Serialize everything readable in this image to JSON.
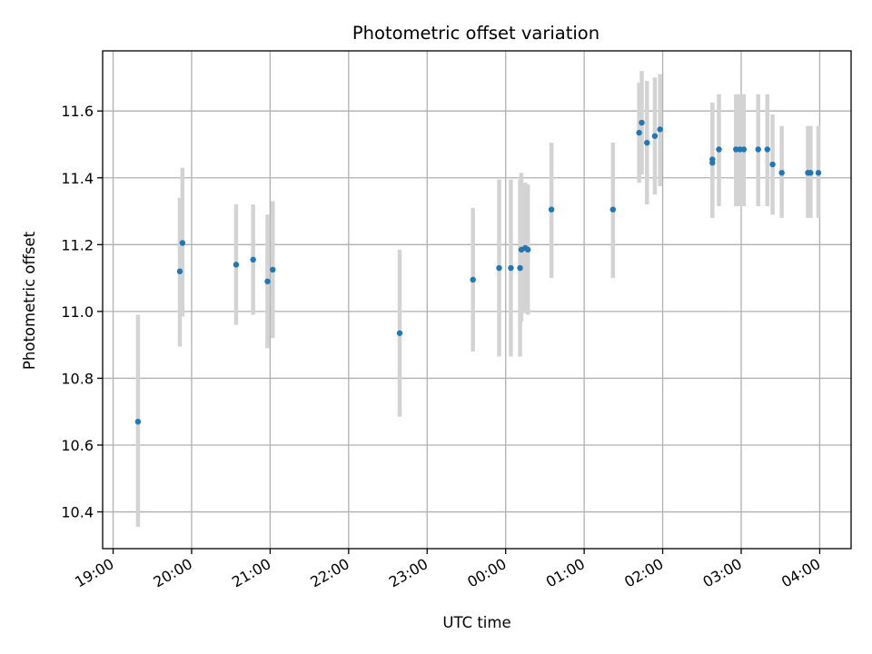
{
  "chart_data": {
    "type": "scatter",
    "title": "Photometric offset variation",
    "xlabel": "UTC time",
    "ylabel": "Photometric offset",
    "x_tick_labels": [
      "19:00",
      "20:00",
      "21:00",
      "22:00",
      "23:00",
      "00:00",
      "01:00",
      "02:00",
      "03:00",
      "04:00"
    ],
    "y_ticks": [
      10.4,
      10.6,
      10.8,
      11.0,
      11.2,
      11.4,
      11.6
    ],
    "y_tick_labels": [
      "10.4",
      "10.6",
      "10.8",
      "11.0",
      "11.2",
      "11.4",
      "11.6"
    ],
    "xlim": [
      "18:52",
      "04:24"
    ],
    "ylim": [
      10.29,
      11.78
    ],
    "grid": true,
    "colors": {
      "point": "#1f77b4",
      "errorbar": "#d3d3d3",
      "grid": "#b0b0b0"
    },
    "points": [
      {
        "x": "19:19",
        "y": 10.67,
        "ylow": 10.355,
        "yhigh": 10.99
      },
      {
        "x": "19:51",
        "y": 11.12,
        "ylow": 10.895,
        "yhigh": 11.34
      },
      {
        "x": "19:53",
        "y": 11.205,
        "ylow": 10.985,
        "yhigh": 11.43
      },
      {
        "x": "20:34",
        "y": 11.14,
        "ylow": 10.96,
        "yhigh": 11.32
      },
      {
        "x": "20:47",
        "y": 11.155,
        "ylow": 10.99,
        "yhigh": 11.32
      },
      {
        "x": "20:58",
        "y": 11.09,
        "ylow": 10.89,
        "yhigh": 11.29
      },
      {
        "x": "21:02",
        "y": 11.125,
        "ylow": 10.92,
        "yhigh": 11.33
      },
      {
        "x": "22:39",
        "y": 10.935,
        "ylow": 10.685,
        "yhigh": 11.185
      },
      {
        "x": "23:35",
        "y": 11.095,
        "ylow": 10.88,
        "yhigh": 11.31
      },
      {
        "x": "23:55",
        "y": 11.13,
        "ylow": 10.865,
        "yhigh": 11.395
      },
      {
        "x": "00:04",
        "y": 11.13,
        "ylow": 10.865,
        "yhigh": 11.395
      },
      {
        "x": "00:11",
        "y": 11.13,
        "ylow": 10.865,
        "yhigh": 11.395
      },
      {
        "x": "00:12",
        "y": 11.185,
        "ylow": 10.97,
        "yhigh": 11.415
      },
      {
        "x": "00:15",
        "y": 11.19,
        "ylow": 10.995,
        "yhigh": 11.385
      },
      {
        "x": "00:17",
        "y": 11.185,
        "ylow": 10.99,
        "yhigh": 11.38
      },
      {
        "x": "00:35",
        "y": 11.305,
        "ylow": 11.1,
        "yhigh": 11.505
      },
      {
        "x": "01:22",
        "y": 11.305,
        "ylow": 11.1,
        "yhigh": 11.505
      },
      {
        "x": "01:42",
        "y": 11.535,
        "ylow": 11.385,
        "yhigh": 11.685
      },
      {
        "x": "01:44",
        "y": 11.565,
        "ylow": 11.41,
        "yhigh": 11.72
      },
      {
        "x": "01:48",
        "y": 11.505,
        "ylow": 11.32,
        "yhigh": 11.69
      },
      {
        "x": "01:54",
        "y": 11.525,
        "ylow": 11.35,
        "yhigh": 11.7
      },
      {
        "x": "01:58",
        "y": 11.545,
        "ylow": 11.375,
        "yhigh": 11.71
      },
      {
        "x": "02:38",
        "y": 11.445,
        "ylow": 11.28,
        "yhigh": 11.625
      },
      {
        "x": "02:38",
        "y": 11.455,
        "ylow": 11.28,
        "yhigh": 11.625
      },
      {
        "x": "02:43",
        "y": 11.485,
        "ylow": 11.315,
        "yhigh": 11.65
      },
      {
        "x": "02:56",
        "y": 11.485,
        "ylow": 11.315,
        "yhigh": 11.65
      },
      {
        "x": "02:59",
        "y": 11.485,
        "ylow": 11.315,
        "yhigh": 11.65
      },
      {
        "x": "03:02",
        "y": 11.485,
        "ylow": 11.315,
        "yhigh": 11.65
      },
      {
        "x": "03:13",
        "y": 11.485,
        "ylow": 11.315,
        "yhigh": 11.65
      },
      {
        "x": "03:20",
        "y": 11.485,
        "ylow": 11.315,
        "yhigh": 11.65
      },
      {
        "x": "03:24",
        "y": 11.44,
        "ylow": 11.29,
        "yhigh": 11.59
      },
      {
        "x": "03:31",
        "y": 11.415,
        "ylow": 11.28,
        "yhigh": 11.555
      },
      {
        "x": "03:51",
        "y": 11.415,
        "ylow": 11.28,
        "yhigh": 11.555
      },
      {
        "x": "03:53",
        "y": 11.415,
        "ylow": 11.28,
        "yhigh": 11.555
      },
      {
        "x": "03:59",
        "y": 11.415,
        "ylow": 11.28,
        "yhigh": 11.555
      }
    ]
  }
}
